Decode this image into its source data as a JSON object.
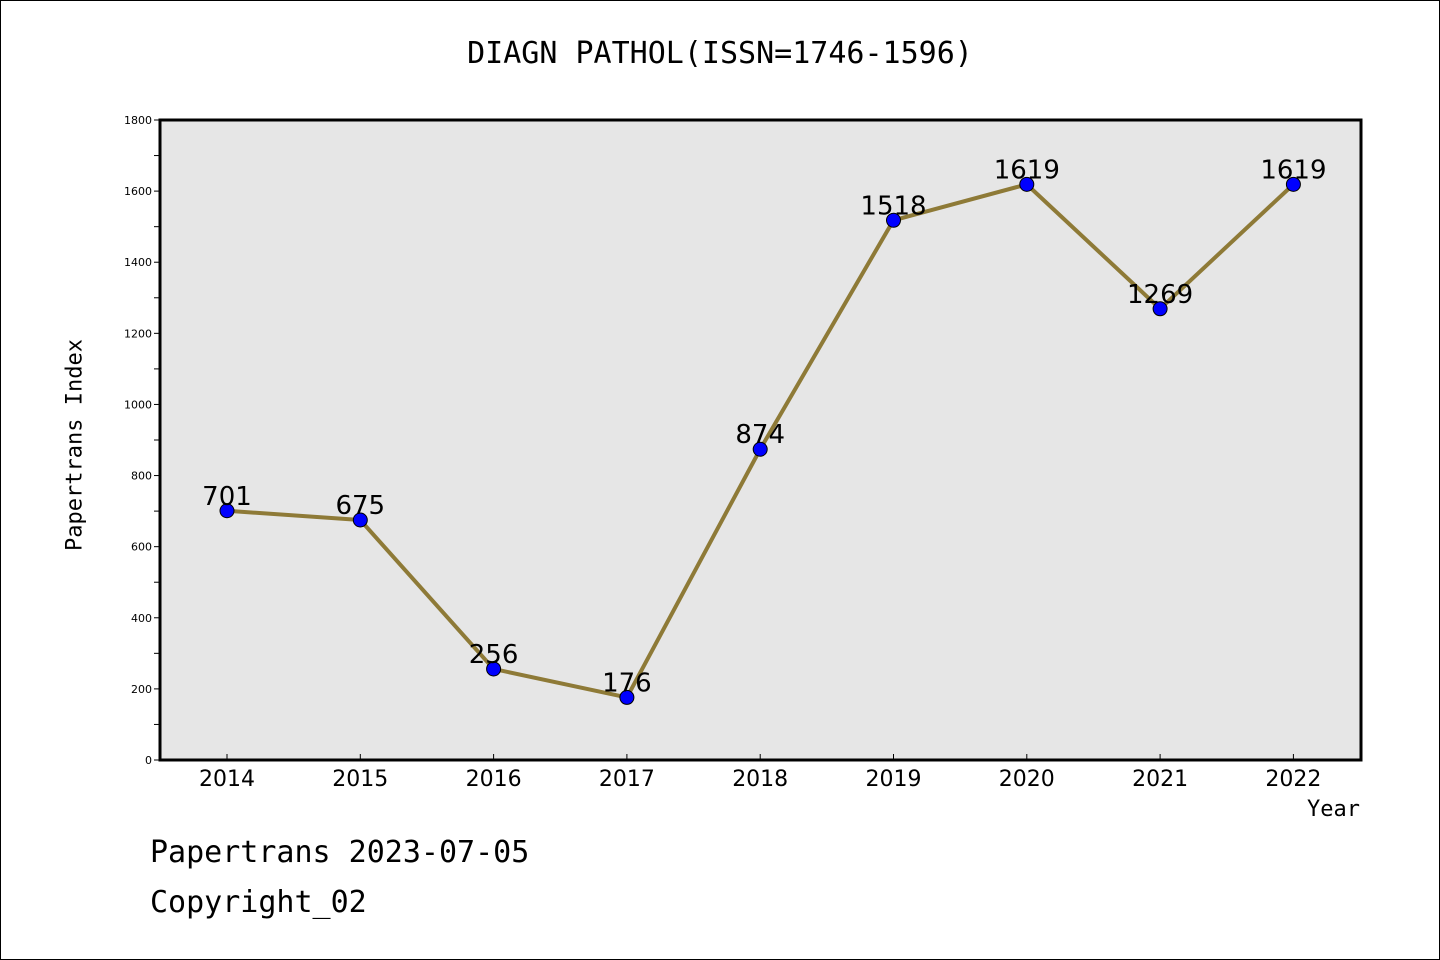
{
  "chart_data": {
    "type": "line",
    "title": "DIAGN PATHOL(ISSN=1746-1596)",
    "xlabel": "Year",
    "ylabel": "Papertrans Index",
    "categories": [
      "2014",
      "2015",
      "2016",
      "2017",
      "2018",
      "2019",
      "2020",
      "2021",
      "2022"
    ],
    "series": [
      {
        "values": [
          701,
          675,
          256,
          176,
          874,
          1518,
          1619,
          1269,
          1619
        ]
      }
    ],
    "data_labels": [
      "701",
      "675",
      "256",
      "176",
      "874",
      "1518",
      "1619",
      "1269",
      "1619"
    ],
    "ylim": [
      0,
      1800
    ],
    "y_ticks": [
      0,
      200,
      400,
      600,
      800,
      1000,
      1200,
      1400,
      1600,
      1800
    ],
    "y_minor_step": 100,
    "grid": false,
    "colors": {
      "line": "#8e7a37",
      "marker": "#0000ff",
      "plot_background": "#e6e6e6"
    }
  },
  "footer": {
    "date_text": "Papertrans 2023-07-05",
    "copyright_text": "Copyright_02"
  }
}
